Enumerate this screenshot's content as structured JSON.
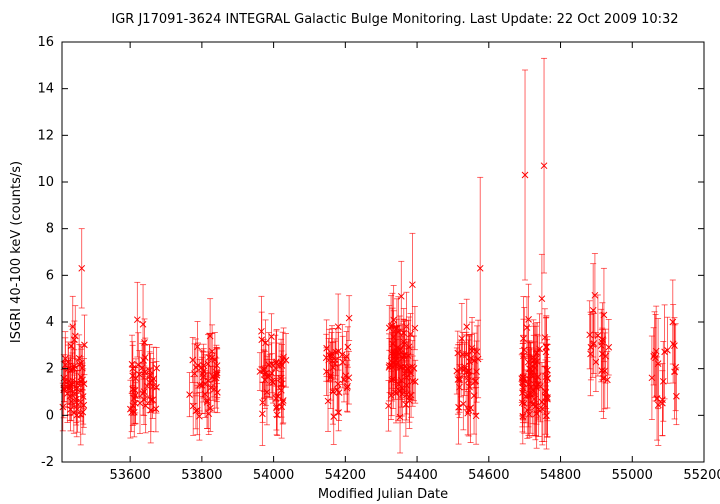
{
  "chart_data": {
    "type": "scatter",
    "title": "IGR J17091-3624   INTEGRAL Galactic Bulge Monitoring.  Last Update: 22 Oct 2009 10:32",
    "xlabel": "Modified Julian Date",
    "ylabel": "ISGRI 40-100 keV (counts/s)",
    "xlim": [
      53410,
      55200
    ],
    "ylim": [
      -2,
      16
    ],
    "xticks": [
      53600,
      53800,
      54000,
      54200,
      54400,
      54600,
      54800,
      55000,
      55200
    ],
    "yticks": [
      -2,
      0,
      2,
      4,
      6,
      8,
      10,
      12,
      14,
      16
    ],
    "marker": "x",
    "error_bars": true,
    "grid": false,
    "legend": "none",
    "color": "#ff0000",
    "groups": [
      {
        "x_range": [
          53412,
          53475
        ],
        "n": 50,
        "y_mean": 1.3,
        "y_spread": 1.3,
        "err": 1.0
      },
      {
        "x_range": [
          53600,
          53675
        ],
        "n": 40,
        "y_mean": 1.3,
        "y_spread": 1.2,
        "err": 1.1
      },
      {
        "x_range": [
          53765,
          53845
        ],
        "n": 40,
        "y_mean": 1.4,
        "y_spread": 1.1,
        "err": 1.0
      },
      {
        "x_range": [
          53960,
          54035
        ],
        "n": 40,
        "y_mean": 1.5,
        "y_spread": 1.2,
        "err": 1.1
      },
      {
        "x_range": [
          54145,
          54215
        ],
        "n": 32,
        "y_mean": 1.8,
        "y_spread": 1.3,
        "err": 1.1
      },
      {
        "x_range": [
          54320,
          54395
        ],
        "n": 70,
        "y_mean": 2.2,
        "y_spread": 1.4,
        "err": 1.2
      },
      {
        "x_range": [
          54505,
          54575
        ],
        "n": 36,
        "y_mean": 1.7,
        "y_spread": 1.3,
        "err": 1.3
      },
      {
        "x_range": [
          54690,
          54765
        ],
        "n": 70,
        "y_mean": 1.6,
        "y_spread": 1.5,
        "err": 1.4
      },
      {
        "x_range": [
          54880,
          54935
        ],
        "n": 18,
        "y_mean": 2.5,
        "y_spread": 1.3,
        "err": 1.4
      },
      {
        "x_range": [
          55050,
          55125
        ],
        "n": 18,
        "y_mean": 2.4,
        "y_spread": 1.3,
        "err": 1.6
      }
    ],
    "points": [
      {
        "x": 53465,
        "y": 6.3,
        "err": 1.7
      },
      {
        "x": 53440,
        "y": 3.8,
        "err": 1.3
      },
      {
        "x": 53447,
        "y": 3.4,
        "err": 1.3
      },
      {
        "x": 53620,
        "y": 4.1,
        "err": 1.6
      },
      {
        "x": 53636,
        "y": 3.9,
        "err": 1.7
      },
      {
        "x": 53823,
        "y": 3.4,
        "err": 1.6
      },
      {
        "x": 53966,
        "y": 3.6,
        "err": 1.5
      },
      {
        "x": 54180,
        "y": 3.8,
        "err": 1.4
      },
      {
        "x": 54356,
        "y": 5.1,
        "err": 1.5
      },
      {
        "x": 54387,
        "y": 5.6,
        "err": 2.2
      },
      {
        "x": 54576,
        "y": 6.3,
        "err": 3.9
      },
      {
        "x": 54701,
        "y": 10.3,
        "err": 4.5
      },
      {
        "x": 54754,
        "y": 10.7,
        "err": 4.6
      },
      {
        "x": 54748,
        "y": 5.0,
        "err": 1.9
      },
      {
        "x": 54891,
        "y": 4.5,
        "err": 2.0
      },
      {
        "x": 54921,
        "y": 4.3,
        "err": 2.0
      },
      {
        "x": 55113,
        "y": 4.0,
        "err": 1.8
      }
    ]
  }
}
